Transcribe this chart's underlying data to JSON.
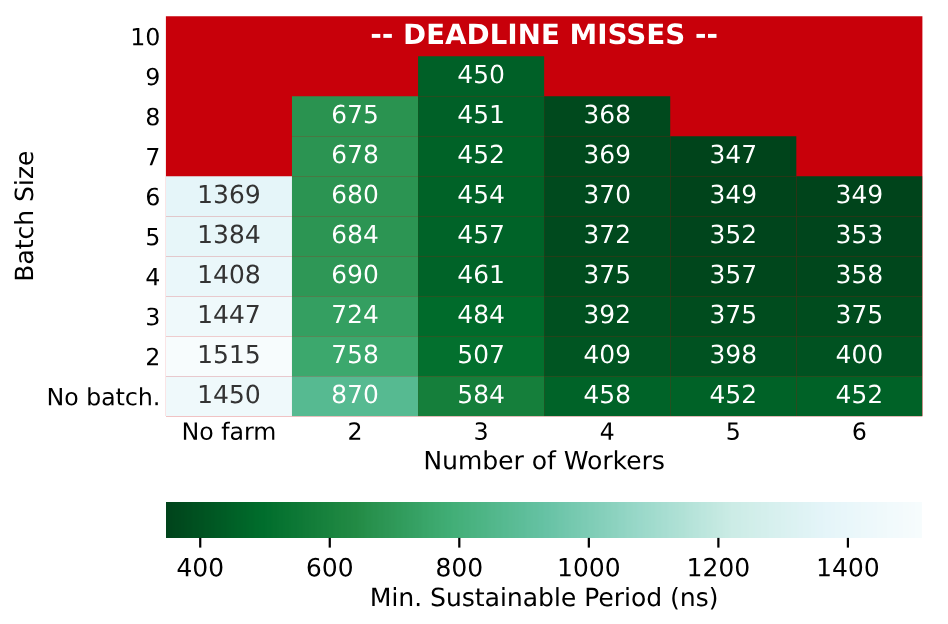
{
  "chart_data": {
    "type": "heatmap",
    "xlabel": "Number of Workers",
    "ylabel": "Batch Size",
    "clabel": "Min. Sustainable Period (ns)",
    "categories": [
      "No farm",
      "2",
      "3",
      "4",
      "5",
      "6"
    ],
    "y_categories": [
      "10",
      "9",
      "8",
      "7",
      "6",
      "5",
      "4",
      "3",
      "2",
      "No batch."
    ],
    "cells": [
      [
        null,
        null,
        null,
        null,
        null,
        null
      ],
      [
        null,
        null,
        450,
        null,
        null,
        null
      ],
      [
        null,
        675,
        451,
        368,
        null,
        null
      ],
      [
        null,
        678,
        452,
        369,
        347,
        null
      ],
      [
        1369,
        680,
        454,
        370,
        349,
        349
      ],
      [
        1384,
        684,
        457,
        372,
        352,
        353
      ],
      [
        1408,
        690,
        461,
        375,
        357,
        358
      ],
      [
        1447,
        724,
        484,
        392,
        375,
        375
      ],
      [
        1515,
        758,
        507,
        409,
        398,
        400
      ],
      [
        1450,
        870,
        584,
        458,
        452,
        452
      ]
    ],
    "clim": [
      347,
      1515
    ],
    "cticks": [
      400,
      600,
      800,
      1000,
      1200,
      1400
    ],
    "data_labels": true,
    "color": "#c8000a",
    "annotations": [
      "-- DEADLINE MISSES --"
    ]
  }
}
